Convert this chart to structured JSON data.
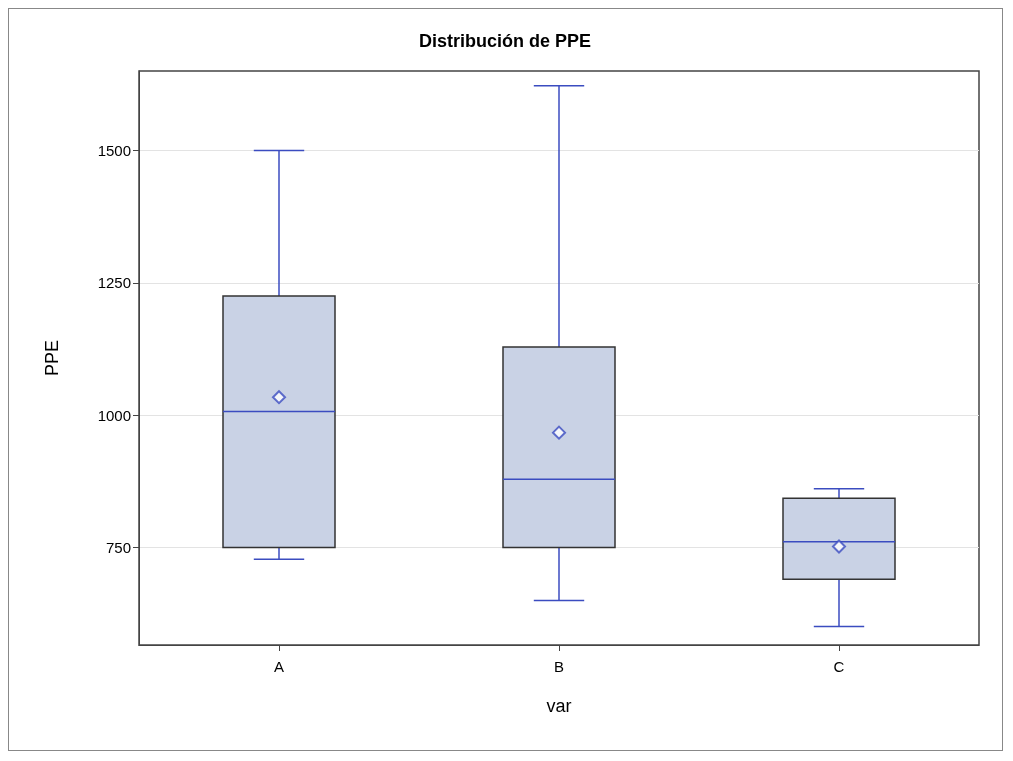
{
  "chart_data": {
    "type": "box",
    "title": "Distribución de PPE",
    "xlabel": "var",
    "ylabel": "PPE",
    "categories": [
      "A",
      "B",
      "C"
    ],
    "boxes": [
      {
        "low": 728,
        "q1": 750,
        "median": 1007,
        "q3": 1225,
        "high": 1500,
        "mean": 1034
      },
      {
        "low": 650,
        "q1": 750,
        "median": 879,
        "q3": 1129,
        "high": 1622,
        "mean": 967
      },
      {
        "low": 601,
        "q1": 690,
        "median": 761,
        "q3": 843,
        "high": 861,
        "mean": 752
      }
    ],
    "color": "#c9d2e5",
    "ylim": [
      566,
      1650
    ],
    "yticks": [
      750,
      1000,
      1250,
      1500
    ],
    "grid": "y",
    "marker": "diamond"
  }
}
